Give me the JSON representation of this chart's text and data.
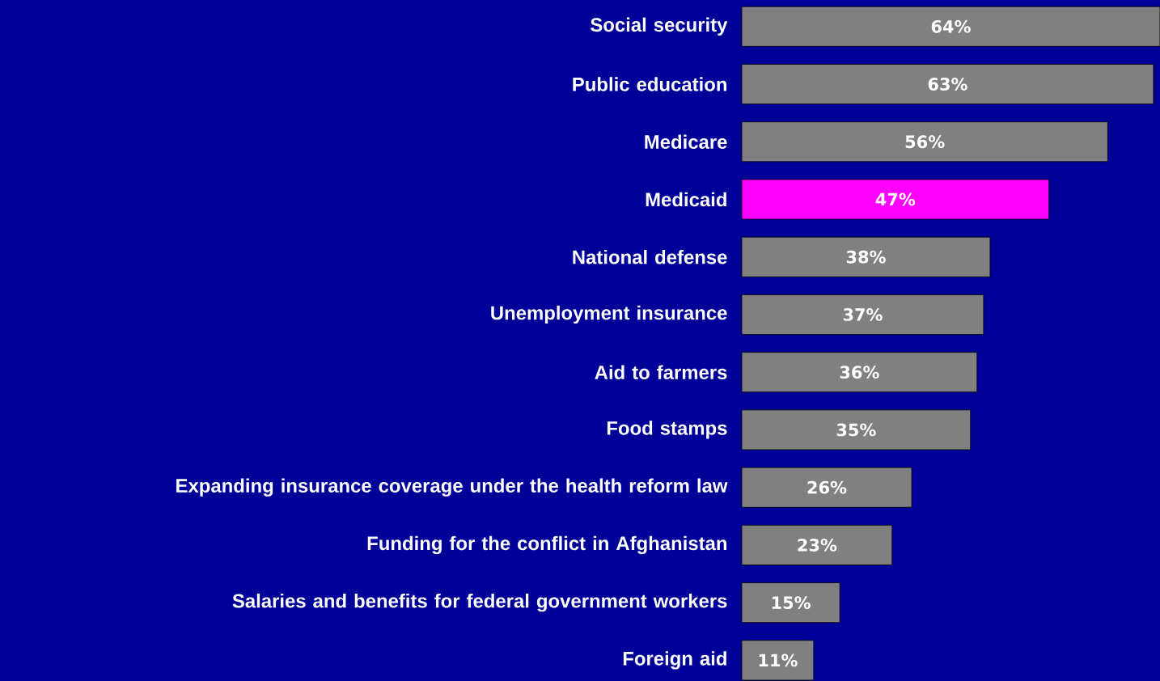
{
  "chart_data": {
    "type": "bar",
    "orientation": "horizontal",
    "categories": [
      "Social security",
      "Public education",
      "Medicare",
      "Medicaid",
      "National defense",
      "Unemployment insurance",
      "Aid to farmers",
      "Food stamps",
      "Expanding insurance coverage under the health reform law",
      "Funding for the conflict in Afghanistan",
      "Salaries and benefits for federal government workers",
      "Foreign aid"
    ],
    "values": [
      64,
      63,
      56,
      47,
      38,
      37,
      36,
      35,
      26,
      23,
      15,
      11
    ],
    "value_labels": [
      "64%",
      "63%",
      "56%",
      "47%",
      "38%",
      "37%",
      "36%",
      "35%",
      "26%",
      "23%",
      "15%",
      "11%"
    ],
    "colors": [
      "#808080",
      "#808080",
      "#808080",
      "#ff00ff",
      "#808080",
      "#808080",
      "#808080",
      "#808080",
      "#808080",
      "#808080",
      "#808080",
      "#808080"
    ],
    "tick_labels": "y"
  }
}
